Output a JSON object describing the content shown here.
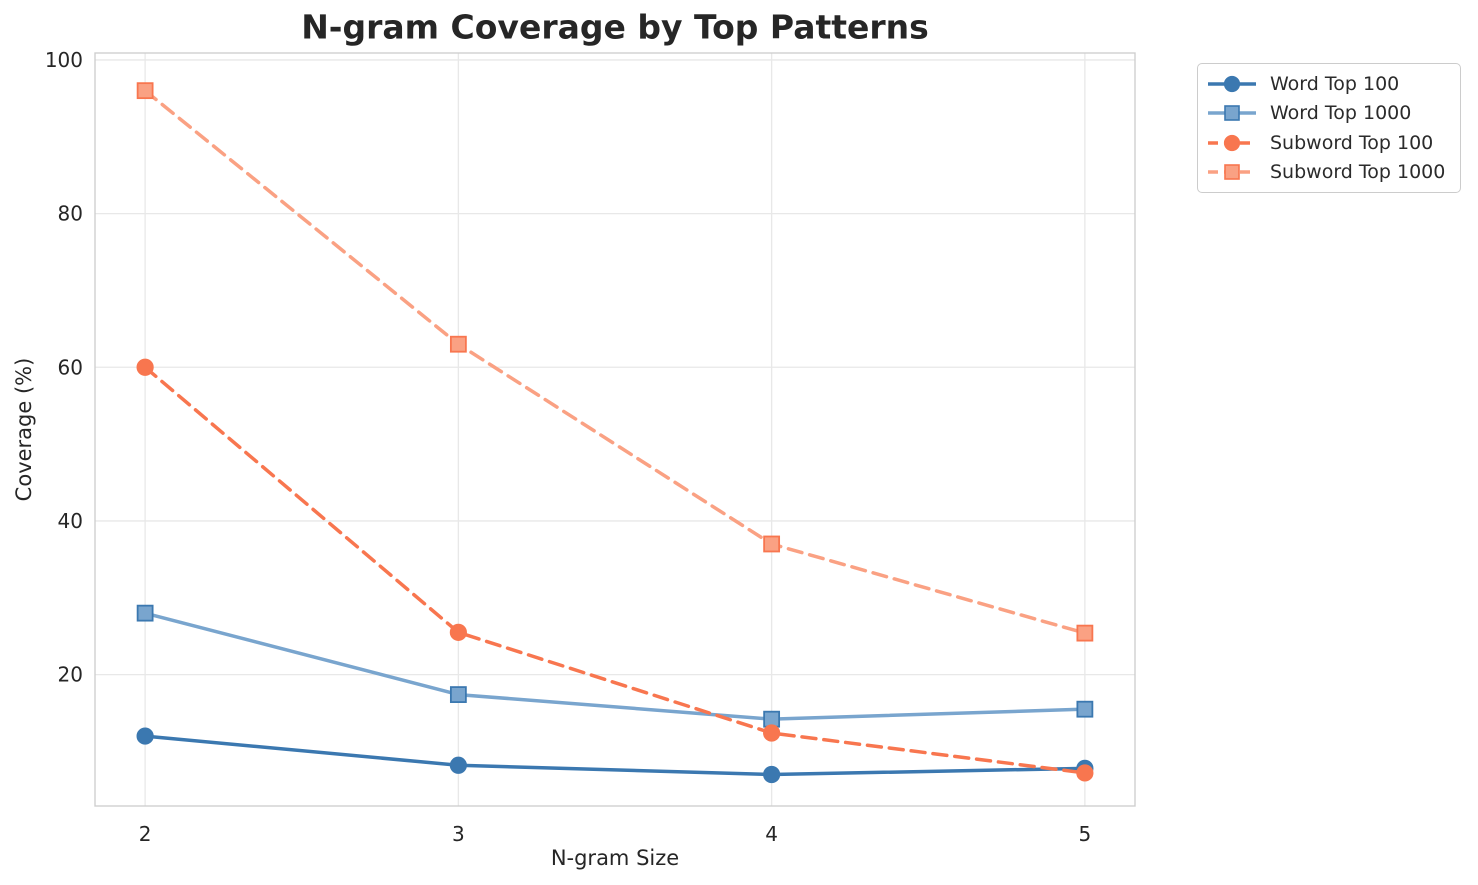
{
  "chart_data": {
    "type": "line",
    "title": "N-gram Coverage by Top Patterns",
    "xlabel": "N-gram Size",
    "ylabel": "Coverage (%)",
    "x": [
      2,
      3,
      4,
      5
    ],
    "xticks": [
      2,
      3,
      4,
      5
    ],
    "yticks": [
      20,
      40,
      60,
      80,
      100
    ],
    "xlim": [
      1.84,
      5.16
    ],
    "ylim": [
      2.9,
      100.9
    ],
    "grid": true,
    "legend_position": "outside-top-right",
    "series": [
      {
        "name": "Word Top 100",
        "values": [
          12,
          8.2,
          7,
          7.8
        ],
        "color": "#3b78b0",
        "edge_color": "#3b78b0",
        "marker": "circle",
        "line_style": "solid"
      },
      {
        "name": "Word Top 1000",
        "values": [
          28,
          17.4,
          14.2,
          15.5
        ],
        "color": "#79a5ce",
        "edge_color": "#3b78b0",
        "marker": "square",
        "line_style": "solid"
      },
      {
        "name": "Subword Top 100",
        "values": [
          60,
          25.5,
          12.4,
          7.2
        ],
        "color": "#f8764f",
        "edge_color": "#f8764f",
        "marker": "circle",
        "line_style": "dashed"
      },
      {
        "name": "Subword Top 1000",
        "values": [
          96,
          63,
          37,
          25.4
        ],
        "color": "#faa183",
        "edge_color": "#f8764f",
        "marker": "square",
        "line_style": "dashed"
      }
    ]
  },
  "style_colors": {
    "grid": "#e8e8e8",
    "spine": "#cfcfcf",
    "tick_label": "#262626",
    "title": "#262626",
    "legend_text": "#2b2b2b"
  }
}
